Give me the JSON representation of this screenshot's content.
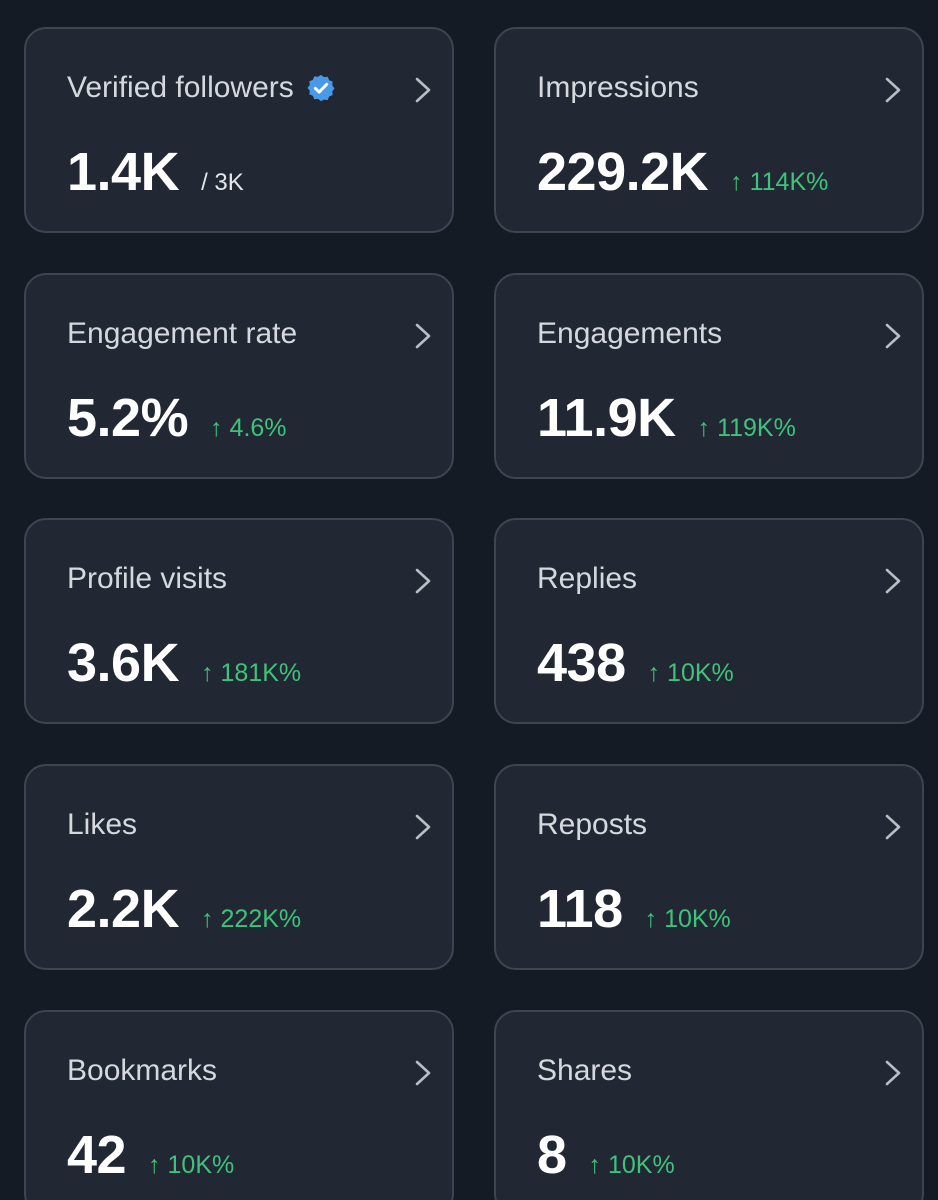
{
  "colors": {
    "background": "#151b24",
    "card": "#212833",
    "border": "#3e4550",
    "positive": "#3fc27a",
    "verified": "#4a99e9"
  },
  "icons": {
    "verified": "verified-badge-icon",
    "chevron": "chevron-right-icon"
  },
  "metrics": {
    "verified_followers": {
      "label": "Verified followers",
      "value": "1.4K",
      "sub": "/ 3K"
    },
    "impressions": {
      "label": "Impressions",
      "value": "229.2K",
      "change": "↑ 114K%"
    },
    "engagement_rate": {
      "label": "Engagement rate",
      "value": "5.2%",
      "change": "↑ 4.6%"
    },
    "engagements": {
      "label": "Engagements",
      "value": "11.9K",
      "change": "↑ 119K%"
    },
    "profile_visits": {
      "label": "Profile visits",
      "value": "3.6K",
      "change": "↑ 181K%"
    },
    "replies": {
      "label": "Replies",
      "value": "438",
      "change": "↑ 10K%"
    },
    "likes": {
      "label": "Likes",
      "value": "2.2K",
      "change": "↑ 222K%"
    },
    "reposts": {
      "label": "Reposts",
      "value": "118",
      "change": "↑ 10K%"
    },
    "bookmarks": {
      "label": "Bookmarks",
      "value": "42",
      "change": "↑ 10K%"
    },
    "shares": {
      "label": "Shares",
      "value": "8",
      "change": "↑ 10K%"
    }
  }
}
